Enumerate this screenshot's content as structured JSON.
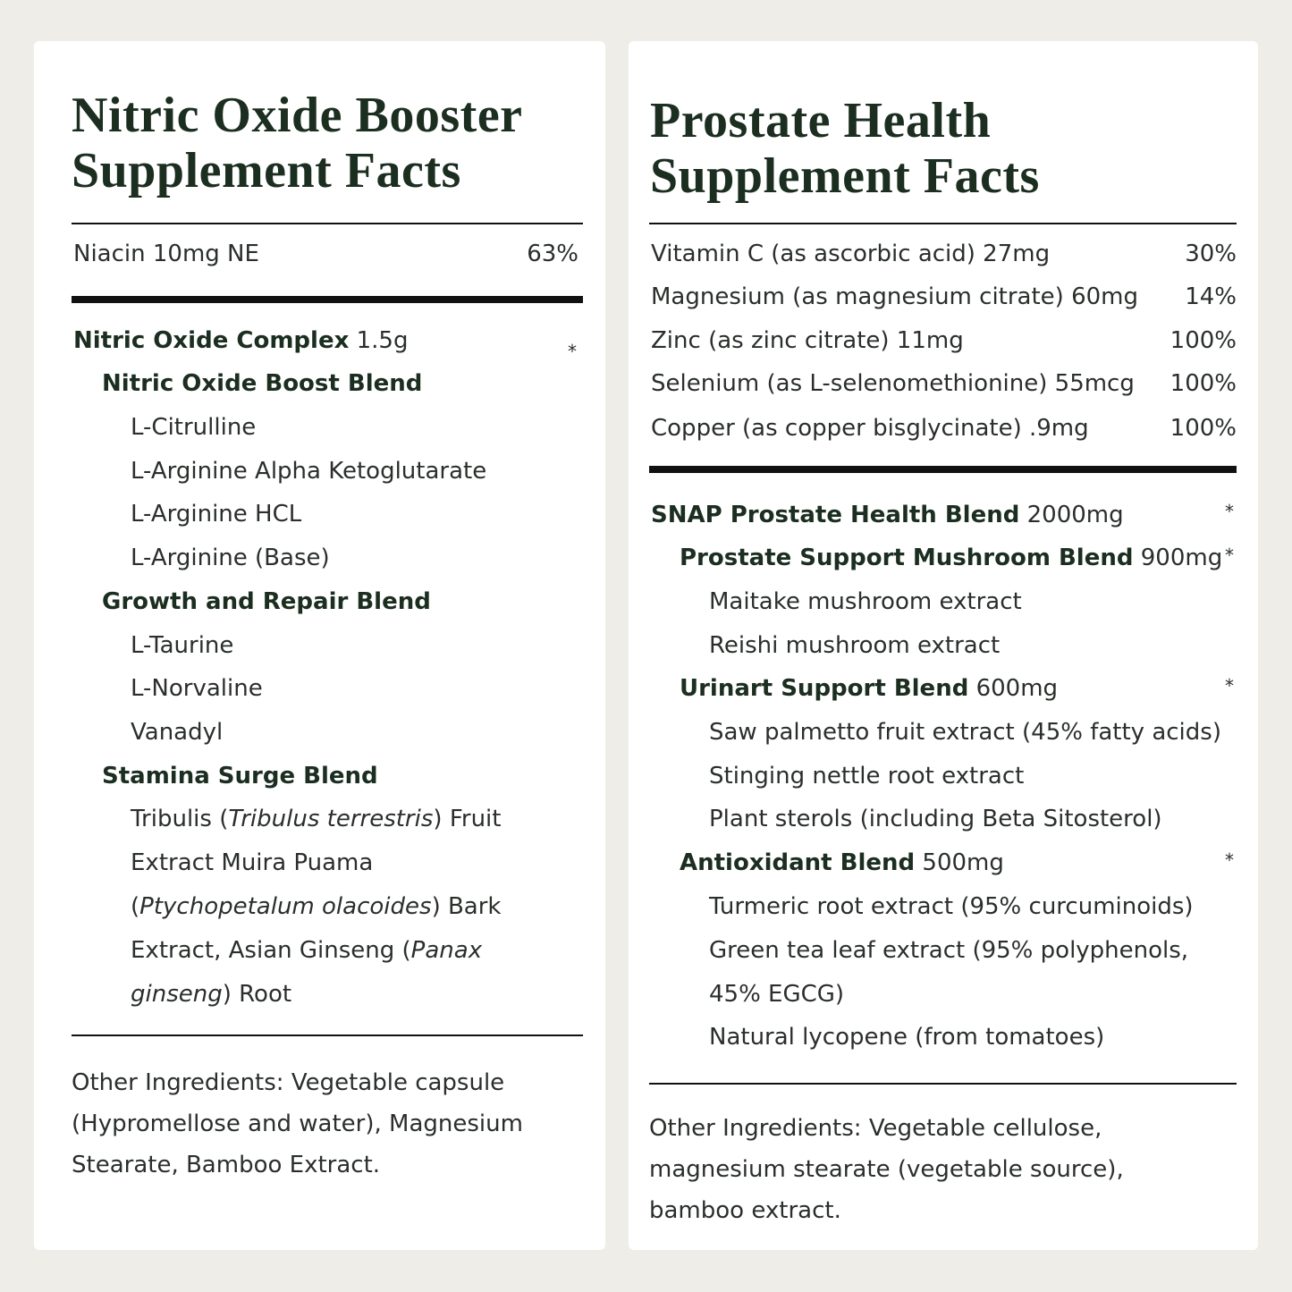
{
  "left": {
    "title_line1": "Nitric Oxide Booster",
    "title_line2": "Supplement Facts",
    "vitamins": [
      {
        "name": "Niacin 10mg NE",
        "dv": "63%"
      }
    ],
    "complex": {
      "name": "Nitric Oxide Complex",
      "amount": "1.5g",
      "dv": "*"
    },
    "blend1": {
      "name": "Nitric Oxide Boost Blend",
      "items": [
        "L-Citrulline",
        "L-Arginine Alpha Ketoglutarate",
        "L-Arginine HCL",
        "L-Arginine (Base)"
      ]
    },
    "blend2": {
      "name": "Growth and Repair Blend",
      "items": [
        "L-Taurine",
        "L-Norvaline",
        "Vanadyl"
      ]
    },
    "blend3": {
      "name": "Stamina Surge Blend",
      "text": {
        "a": "Tribulis (",
        "b": "Tribulus terrestris",
        "c": ") Fruit",
        "d": "Extract Muira Puama",
        "e": "(",
        "f": "Ptychopetalum olacoides",
        "g": ") Bark",
        "h": "Extract, Asian Ginseng (",
        "i": "Panax",
        "j": "ginseng",
        "k": ") Root"
      }
    },
    "other": [
      "Other Ingredients: Vegetable capsule",
      "(Hypromellose and water), Magnesium",
      "Stearate, Bamboo Extract."
    ]
  },
  "right": {
    "title_line1": "Prostate Health",
    "title_line2": "Supplement Facts",
    "vitamins": [
      {
        "name": "Vitamin C (as ascorbic acid) 27mg",
        "dv": "30%"
      },
      {
        "name": "Magnesium (as magnesium citrate) 60mg",
        "dv": "14%"
      },
      {
        "name": "Zinc (as zinc citrate) 11mg",
        "dv": "100%"
      },
      {
        "name": "Selenium (as L-selenomethionine) 55mcg",
        "dv": "100%"
      },
      {
        "name": "Copper (as copper bisglycinate) .9mg",
        "dv": "100%"
      }
    ],
    "main_blend": {
      "name": "SNAP Prostate Health Blend",
      "amount": "2000mg",
      "dv": "*"
    },
    "blend1": {
      "name": "Prostate Support Mushroom Blend",
      "amount": "900mg",
      "dv": "*",
      "items": [
        "Maitake mushroom extract",
        "Reishi mushroom extract"
      ]
    },
    "blend2": {
      "name": "Urinart Support Blend",
      "amount": "600mg",
      "dv": "*",
      "items": [
        "Saw palmetto fruit extract (45% fatty acids)",
        "Stinging nettle root extract",
        "Plant sterols (including Beta Sitosterol)"
      ]
    },
    "blend3": {
      "name": "Antioxidant Blend",
      "amount": "500mg",
      "dv": "*",
      "items": [
        "Turmeric root extract (95% curcuminoids)",
        "Green tea leaf extract (95% polyphenols,",
        "45% EGCG)",
        "Natural lycopene (from tomatoes)"
      ]
    },
    "other": [
      "Other Ingredients: Vegetable cellulose,",
      "magnesium stearate (vegetable source),",
      "bamboo extract."
    ]
  }
}
